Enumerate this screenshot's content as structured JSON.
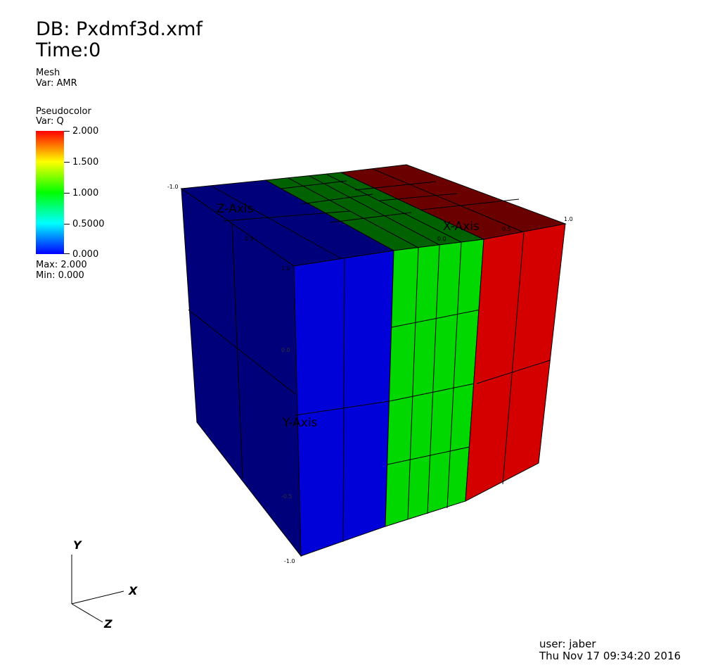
{
  "header": {
    "db_line": "DB: Pxdmf3d.xmf",
    "time_line": "Time:0"
  },
  "mesh_legend": {
    "title": "Mesh",
    "var": "Var: AMR"
  },
  "pseudocolor_legend": {
    "title": "Pseudocolor",
    "var": "Var: Q",
    "ticks": [
      "2.000",
      "1.500",
      "1.000",
      "0.5000",
      "0.000"
    ],
    "max": "Max:  2.000",
    "min": "Min:  0.000",
    "colormap": [
      "#0000ff",
      "#00ffff",
      "#00ff00",
      "#ffff00",
      "#ff0000"
    ]
  },
  "scene": {
    "x_axis_label": "X-Axis",
    "y_axis_label": "Y-Axis",
    "z_axis_label": "Z-Axis",
    "tick_labels": {
      "top_left": "-1.0",
      "top_right": "1.0",
      "front_top": "1.0",
      "front_mid": "0.0",
      "front_bottom": "-1.0",
      "y_low": "-0.5",
      "x_mid": "0.0",
      "x_half": "0.5",
      "z_half": "0.5"
    },
    "face_colors": {
      "blue": "#0000d8",
      "green": "#00d800",
      "red": "#d40000",
      "blue_dark": "#00007a",
      "green_dark": "#006200",
      "red_dark": "#6a0000"
    }
  },
  "triad": {
    "x": "X",
    "y": "Y",
    "z": "Z"
  },
  "footer": {
    "user": "user: jaber",
    "timestamp": "Thu Nov 17 09:34:20 2016"
  }
}
